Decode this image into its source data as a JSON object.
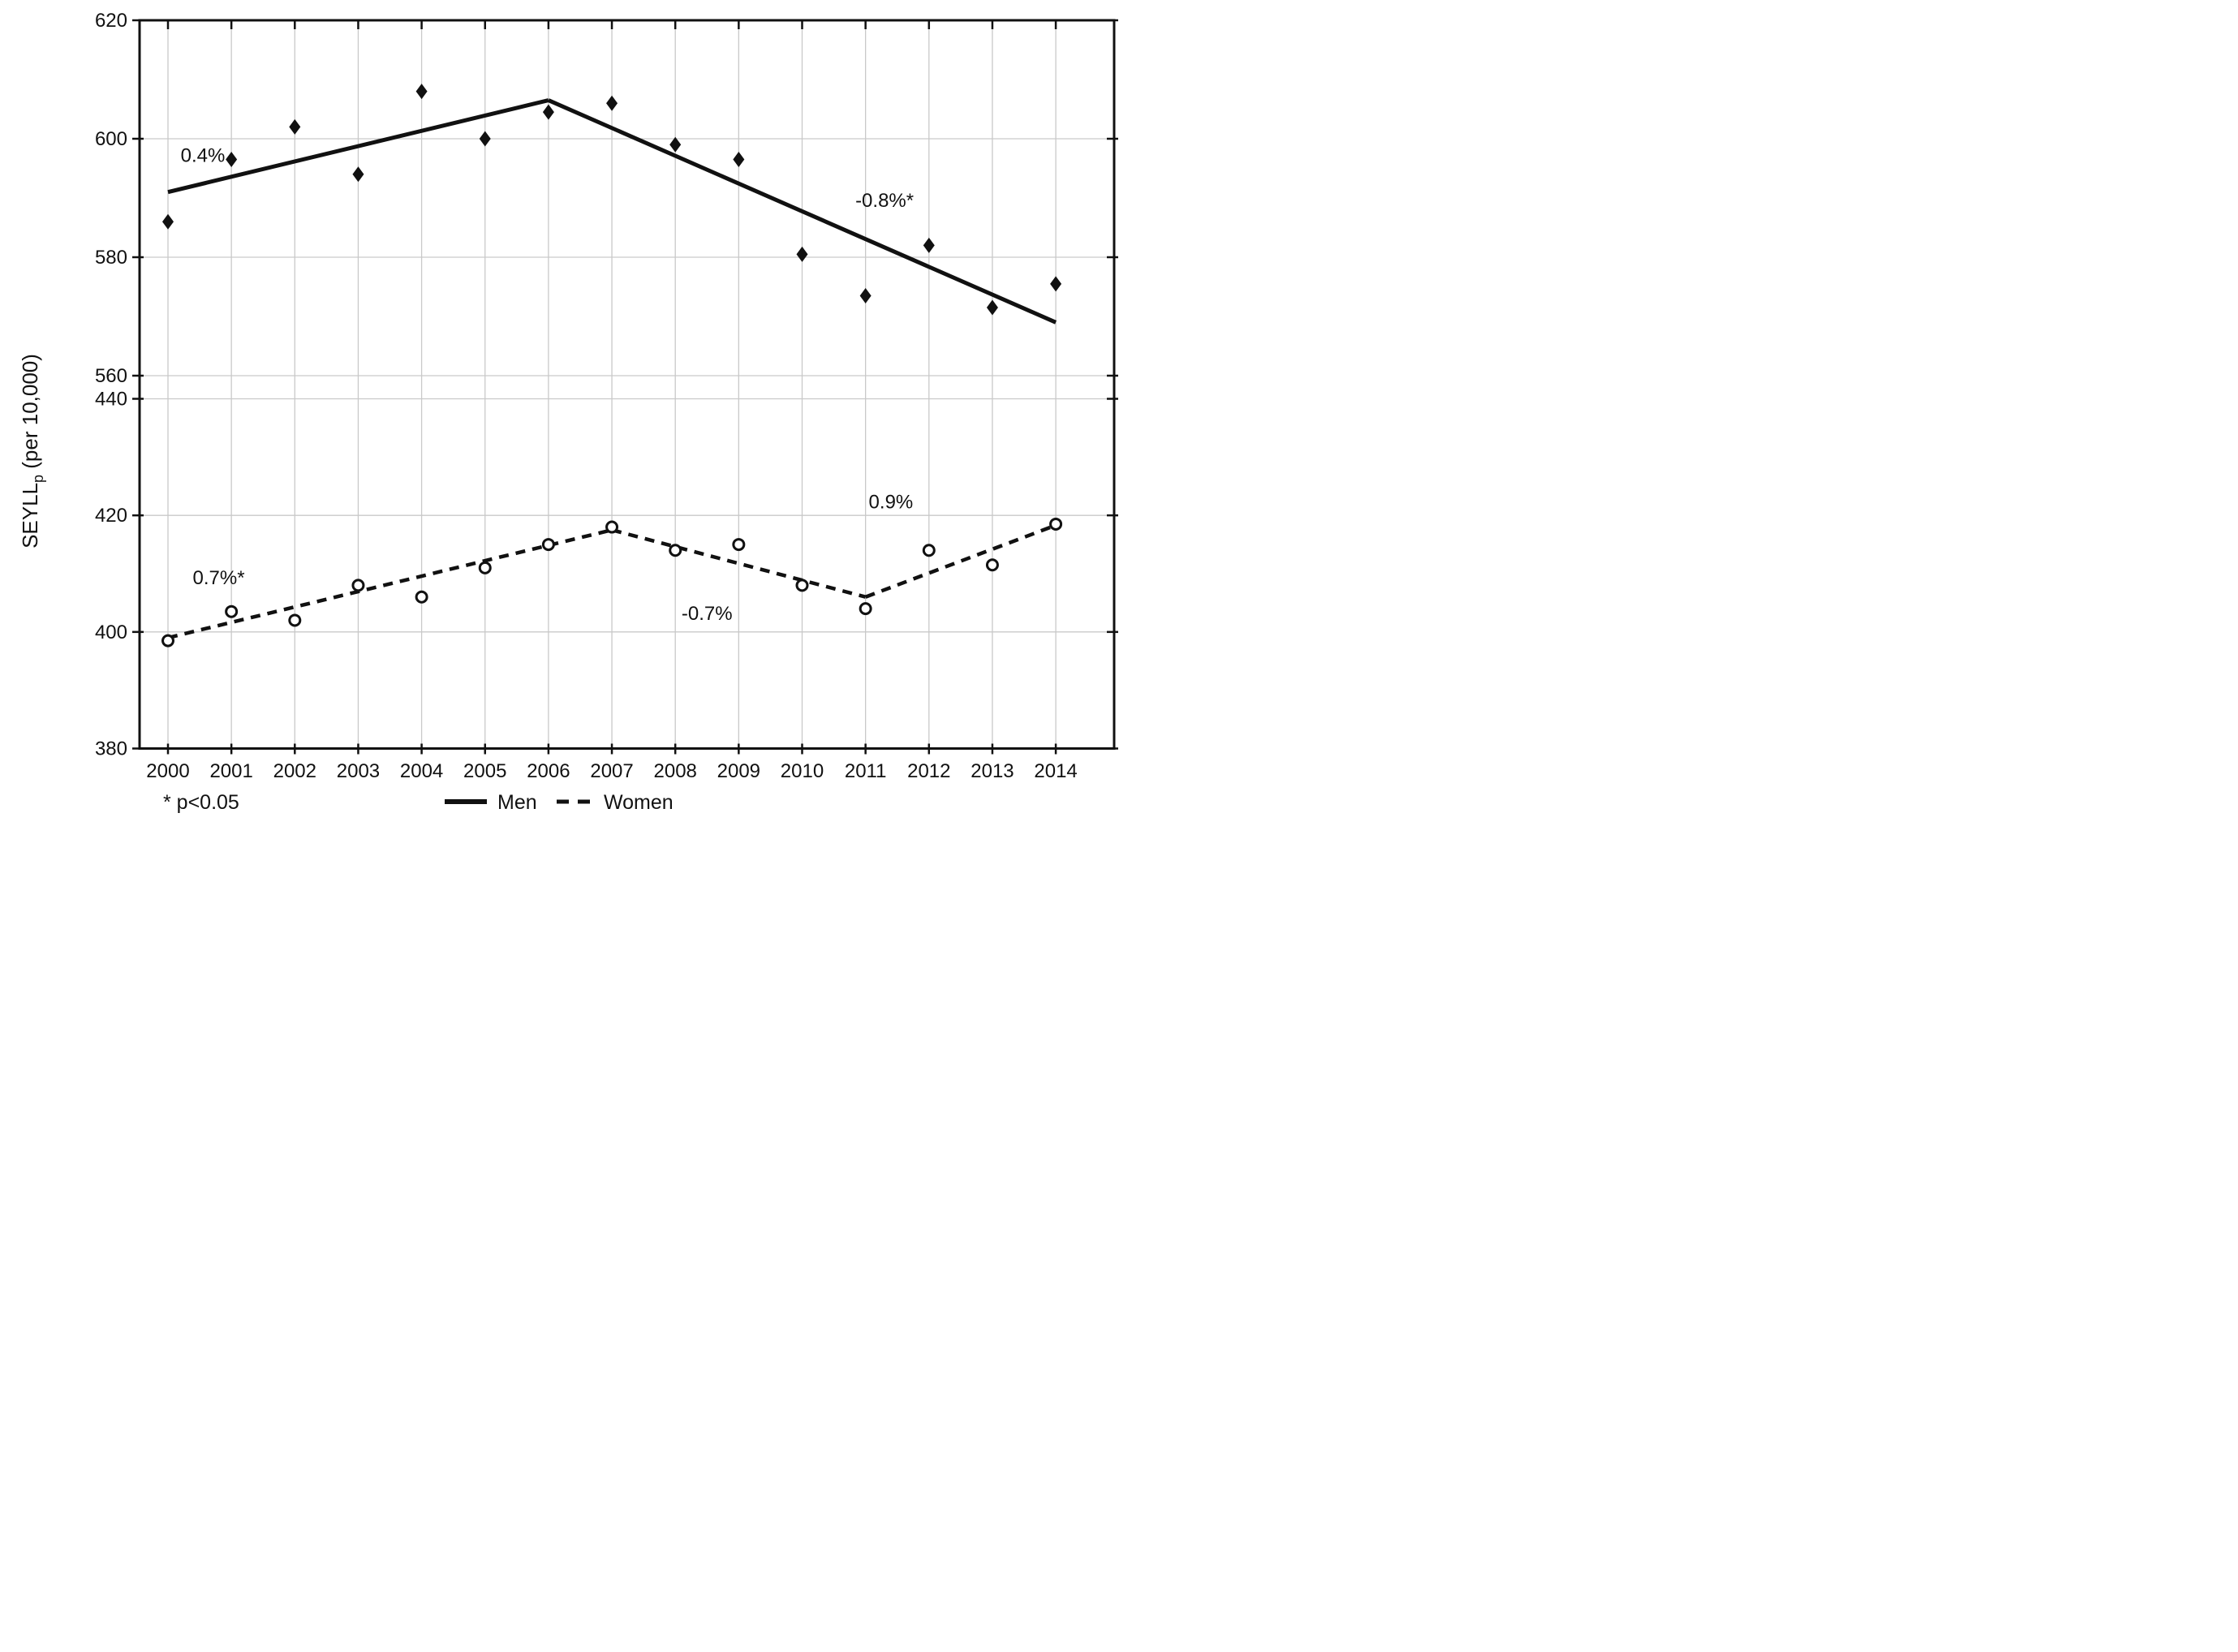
{
  "figure": {
    "ylabel": {
      "main": "SEYLL",
      "sub": "p",
      "rest": " (per 10,000)"
    },
    "footnote": "* p<0.05",
    "legend": [
      {
        "label": "Men",
        "line_style": "solid"
      },
      {
        "label": "Women",
        "line_style": "dashed"
      }
    ]
  },
  "chart_data": {
    "type": "scatter",
    "title": "",
    "xlabel": "",
    "ylabel": "SEYLLp (per 10,000)",
    "grid": true,
    "legend_position": "bottom",
    "x": [
      2000,
      2001,
      2002,
      2003,
      2004,
      2005,
      2006,
      2007,
      2008,
      2009,
      2010,
      2011,
      2012,
      2013,
      2014
    ],
    "panels": [
      {
        "name": "Men",
        "marker": "filled-diamond",
        "trend_line_style": "solid",
        "ylim": [
          560,
          620
        ],
        "yticks": [
          560,
          580,
          600,
          620
        ],
        "values": [
          586,
          596.5,
          602,
          594,
          608,
          600,
          604.5,
          606,
          599,
          596.5,
          580.5,
          573.5,
          582,
          571.5,
          575.5
        ],
        "trend_segments": [
          {
            "x_start": 2000,
            "y_start": 591,
            "x_end": 2006,
            "y_end": 606.5,
            "label": "0.4%",
            "label_x": 2000.55,
            "label_y": 597.2
          },
          {
            "x_start": 2006,
            "y_start": 606.5,
            "x_end": 2014,
            "y_end": 569,
            "label": "-0.8%*",
            "label_x": 2011.3,
            "label_y": 589.6
          }
        ]
      },
      {
        "name": "Women",
        "marker": "open-circle",
        "trend_line_style": "dashed",
        "ylim": [
          380,
          440
        ],
        "yticks": [
          380,
          400,
          420,
          440
        ],
        "values": [
          398.5,
          403.5,
          402,
          408,
          406,
          411,
          415,
          418,
          414,
          415,
          408,
          404,
          414,
          411.5,
          418.5
        ],
        "trend_segments": [
          {
            "x_start": 2000,
            "y_start": 399,
            "x_end": 2007,
            "y_end": 417.5,
            "label": "0.7%*",
            "label_x": 2000.8,
            "label_y": 409.3
          },
          {
            "x_start": 2007,
            "y_start": 417.5,
            "x_end": 2011,
            "y_end": 406,
            "label": "-0.7%",
            "label_x": 2008.5,
            "label_y": 403.2
          },
          {
            "x_start": 2011,
            "y_start": 406,
            "x_end": 2014,
            "y_end": 418.3,
            "label": "0.9%",
            "label_x": 2011.4,
            "label_y": 422.3
          }
        ]
      }
    ]
  }
}
